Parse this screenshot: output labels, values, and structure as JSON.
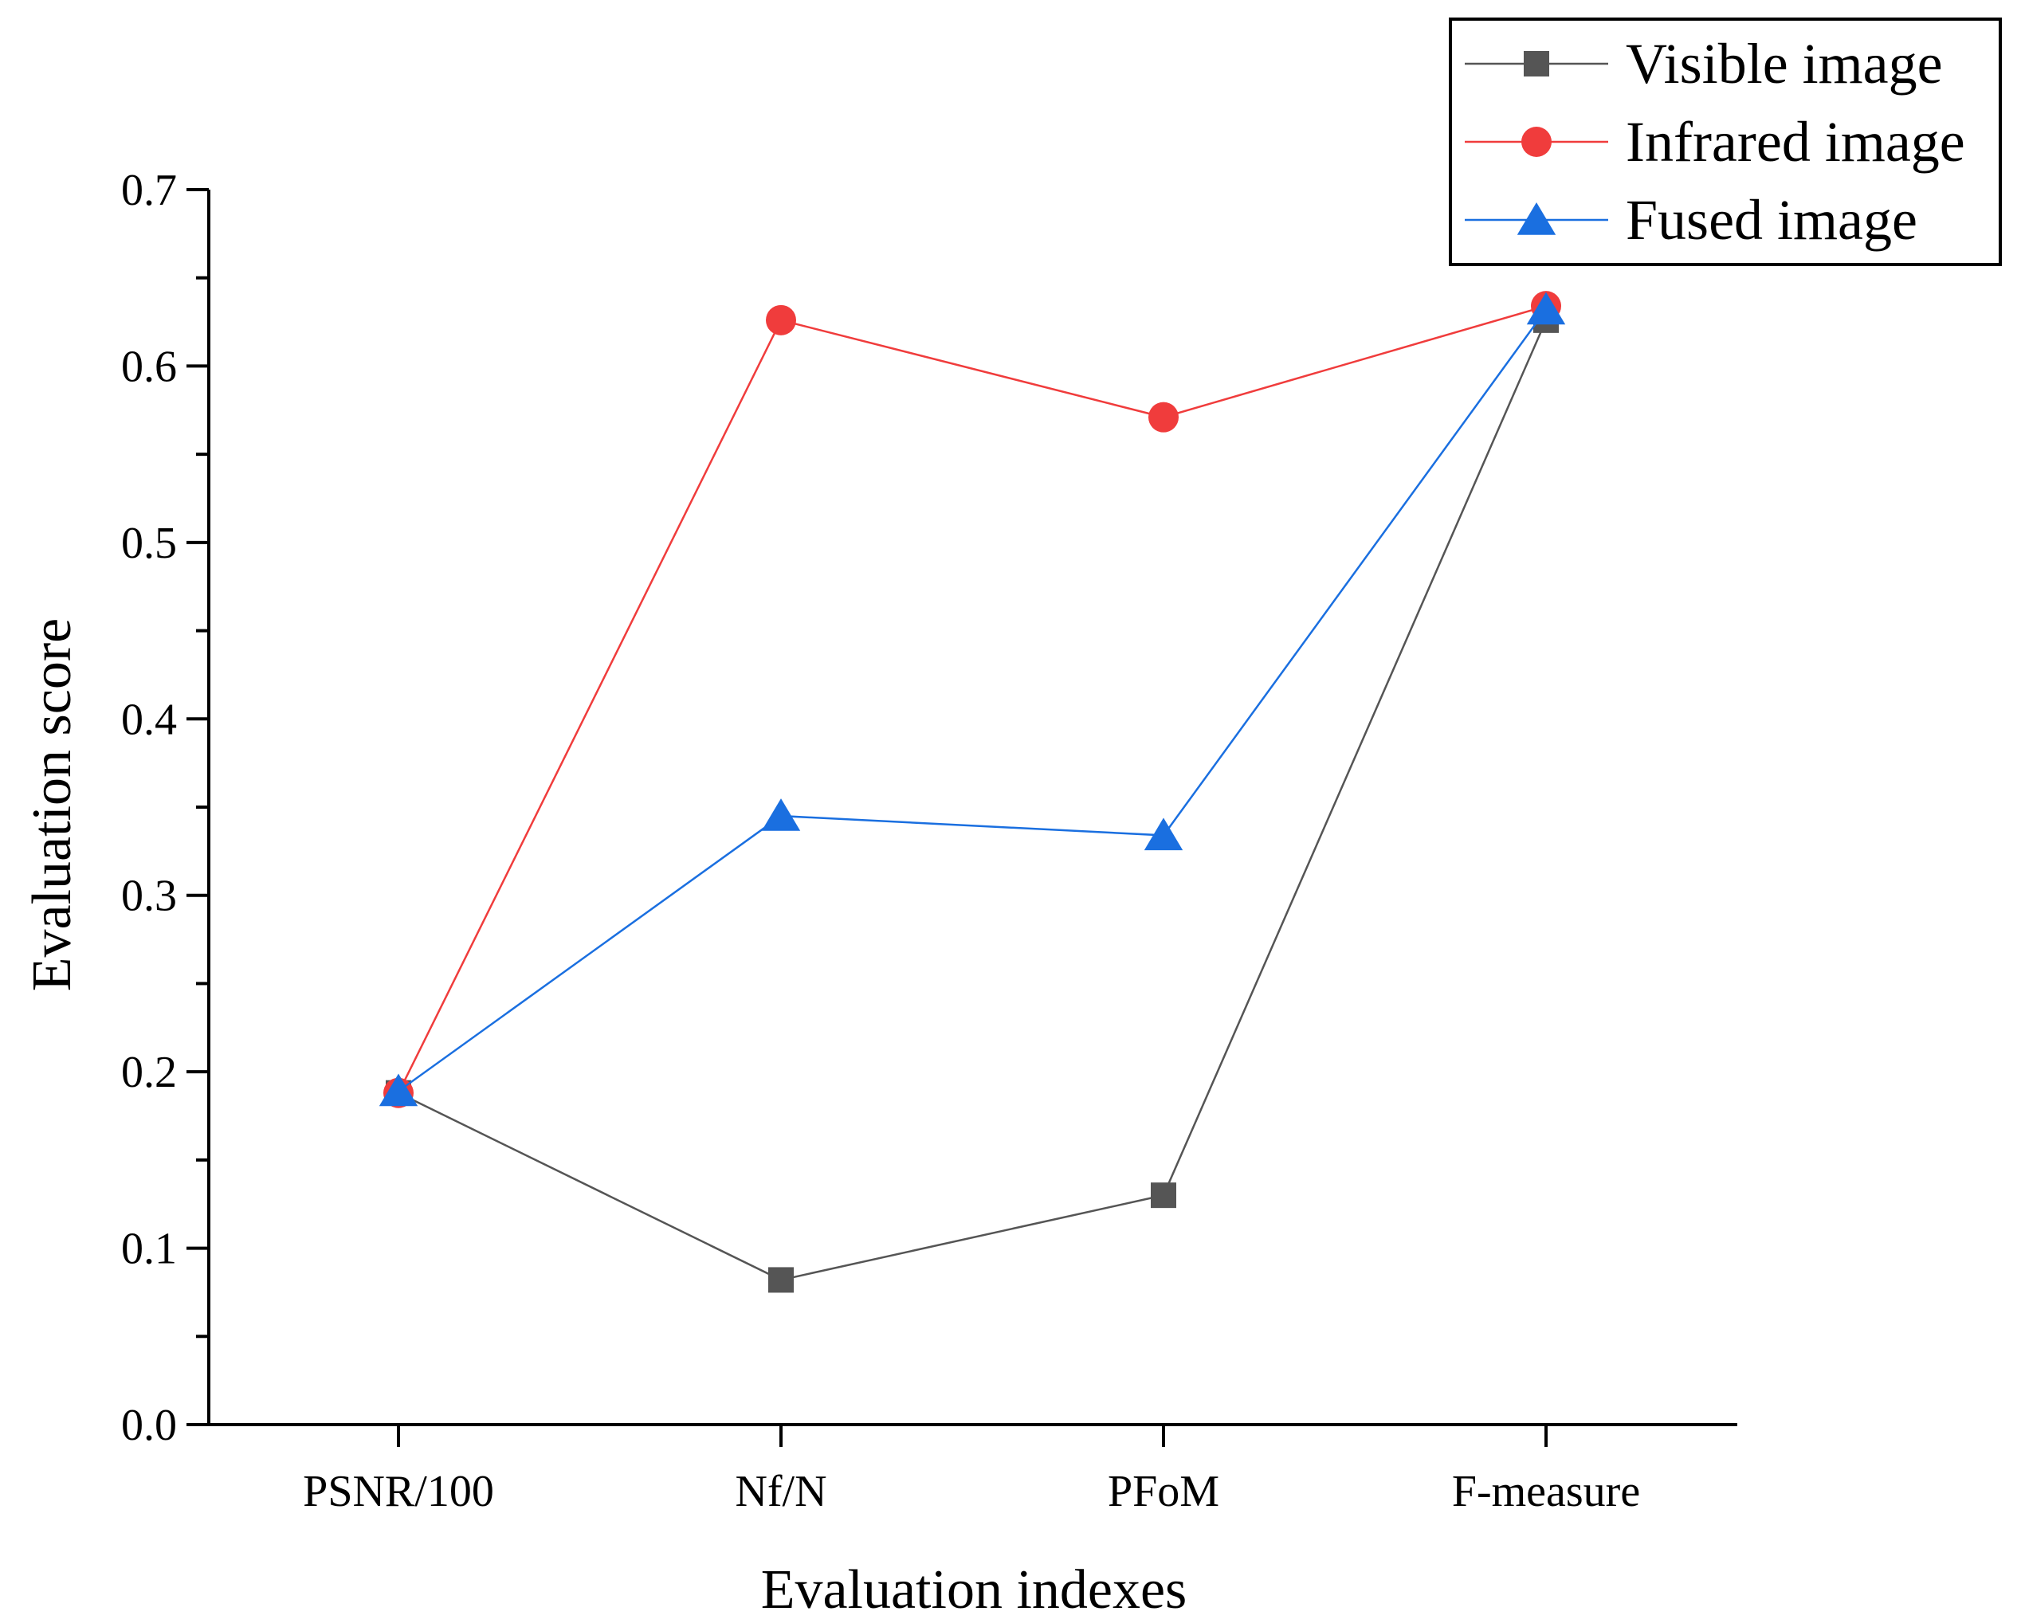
{
  "chart_data": {
    "type": "line",
    "title": "",
    "xlabel": "Evaluation indexes",
    "ylabel": "Evaluation score",
    "categories": [
      "PSNR/100",
      "Nf/N",
      "PFoM",
      "F-measure"
    ],
    "ylim": [
      0,
      0.7
    ],
    "yticks": [
      0.0,
      0.1,
      0.2,
      0.3,
      0.4,
      0.5,
      0.6,
      0.7
    ],
    "ytick_labels": [
      "0.0",
      "0.1",
      "0.2",
      "0.3",
      "0.4",
      "0.5",
      "0.6",
      "0.7"
    ],
    "grid": false,
    "legend_position": "top-right",
    "series": [
      {
        "name": "Visible image",
        "marker": "square",
        "color": "#555555",
        "values": [
          0.188,
          0.082,
          0.13,
          0.626
        ]
      },
      {
        "name": "Infrared image",
        "marker": "circle",
        "color": "#f03c3c",
        "values": [
          0.188,
          0.626,
          0.571,
          0.634
        ]
      },
      {
        "name": "Fused image",
        "marker": "triangle",
        "color": "#1a6fe0",
        "values": [
          0.189,
          0.345,
          0.334,
          0.632
        ]
      }
    ]
  }
}
